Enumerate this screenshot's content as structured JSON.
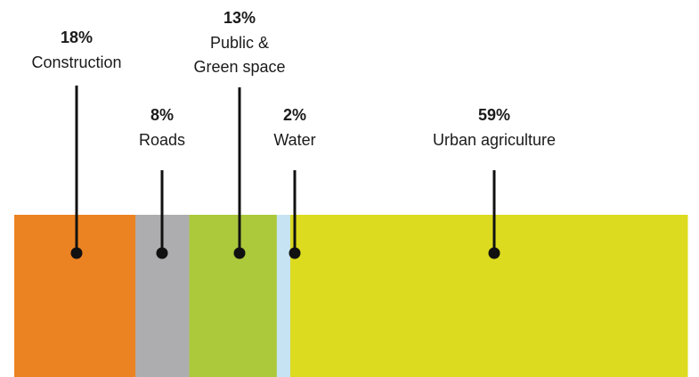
{
  "chart_data": {
    "type": "bar",
    "orientation": "horizontal-stacked",
    "unit": "%",
    "categories": [
      "Construction",
      "Roads",
      "Public & Green space",
      "Water",
      "Urban agriculture"
    ],
    "values": [
      18,
      8,
      13,
      2,
      59
    ],
    "label_lines": [
      [
        "Construction"
      ],
      [
        "Roads"
      ],
      [
        "Public &",
        "Green space"
      ],
      [
        "Water"
      ],
      [
        "Urban agriculture"
      ]
    ],
    "value_labels": [
      "18%",
      "8%",
      "13%",
      "2%",
      "59%"
    ],
    "colors": [
      "#ec8322",
      "#adadaf",
      "#abc93b",
      "#c6e3f3",
      "#dcdb1f"
    ],
    "total": 100,
    "title": "",
    "xlabel": "",
    "ylabel": "",
    "grid": false,
    "legend": "none"
  }
}
